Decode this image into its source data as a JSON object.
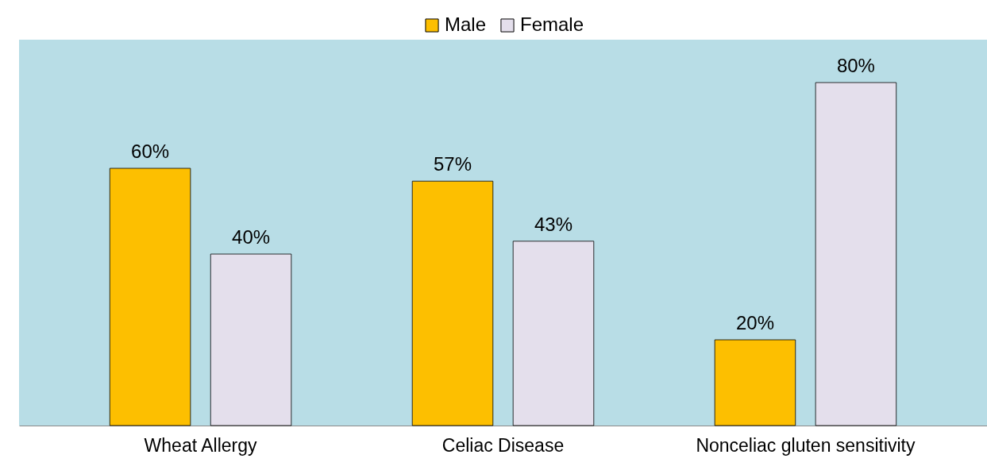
{
  "chart_data": {
    "type": "bar",
    "categories": [
      "Wheat Allergy",
      "Celiac Disease",
      "Nonceliac gluten sensitivity"
    ],
    "series": [
      {
        "name": "Male",
        "color": "#fdbf00",
        "values": [
          60,
          57,
          20
        ],
        "value_labels": [
          "60%",
          "57%",
          "20%"
        ]
      },
      {
        "name": "Female",
        "color": "#e4dfec",
        "values": [
          40,
          43,
          80
        ],
        "value_labels": [
          "40%",
          "43%",
          "80%"
        ]
      }
    ],
    "legend": "top"
  }
}
